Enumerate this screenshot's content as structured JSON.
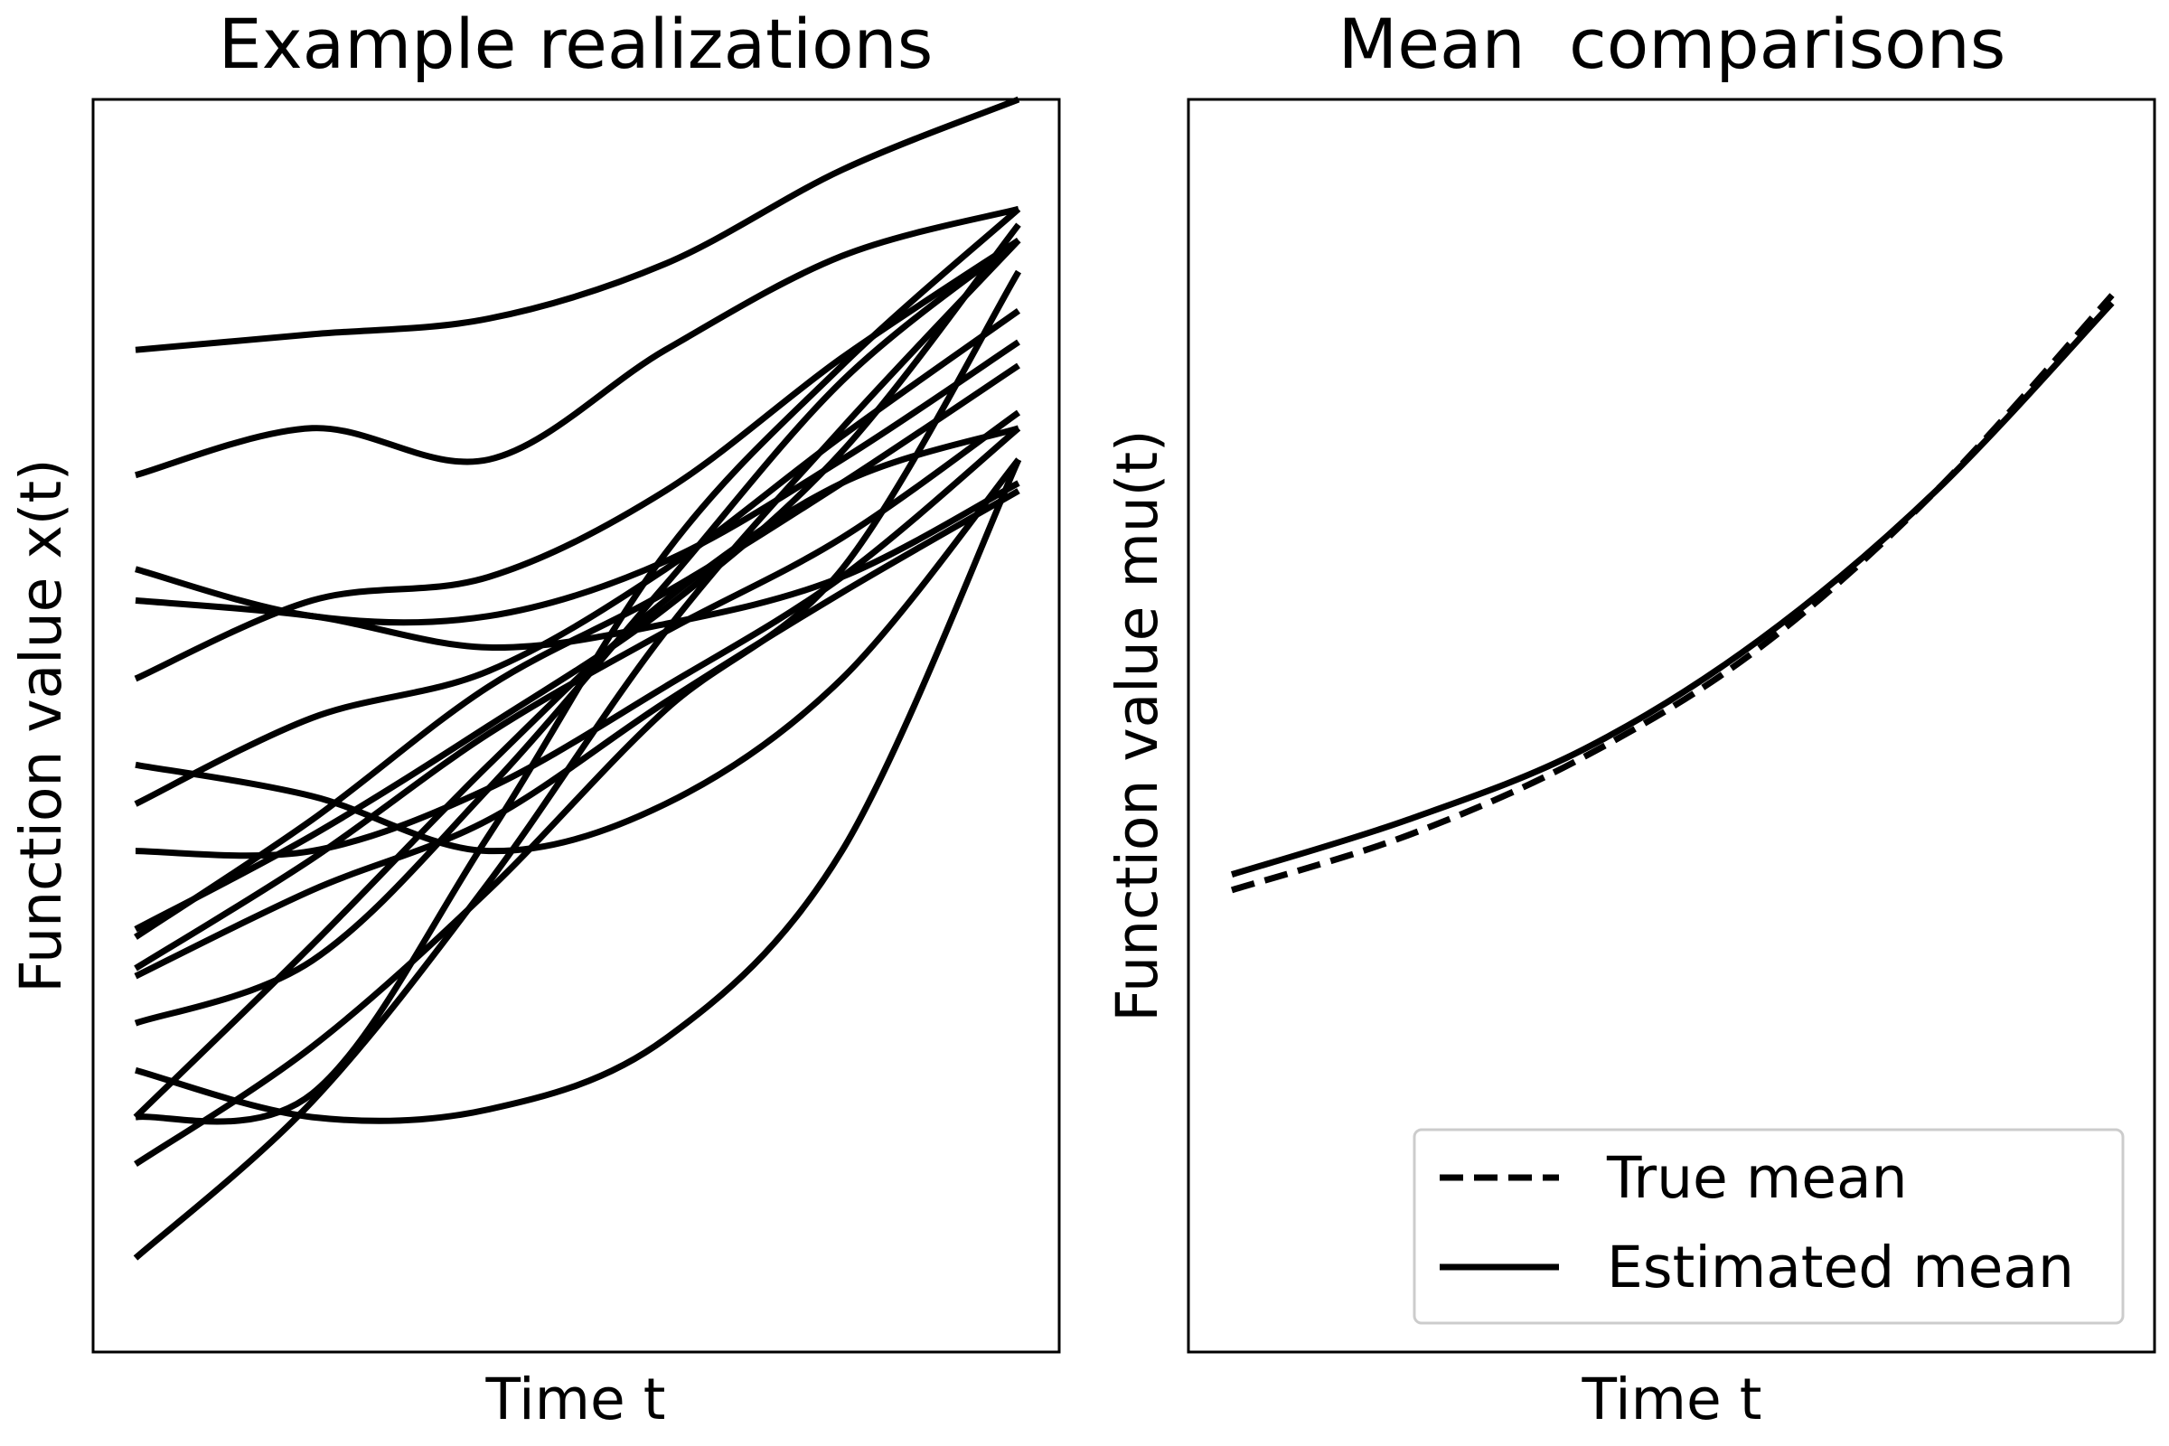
{
  "chart_data": [
    {
      "type": "line",
      "title": "Example realizations",
      "xlabel": "Time t",
      "ylabel": "Function value x(t)",
      "xticks": "none",
      "yticks": "none",
      "xlim": [
        0,
        1
      ],
      "ylim": [
        -4.0,
        4.0
      ],
      "grid": false,
      "line_color": "#000000",
      "series": [
        {
          "x": [
            0,
            0.2,
            0.4,
            0.6,
            0.8,
            1.0
          ],
          "values": [
            -3.4,
            -2.4,
            -1.0,
            0.6,
            1.9,
            3.1
          ]
        },
        {
          "x": [
            0,
            0.2,
            0.4,
            0.6,
            0.8,
            1.0
          ],
          "values": [
            -2.8,
            -2.05,
            -1.05,
            0.1,
            1.0,
            2.9
          ]
        },
        {
          "x": [
            0,
            0.2,
            0.4,
            0.6,
            0.8,
            1.0
          ],
          "values": [
            -2.2,
            -2.5,
            -2.45,
            -2.0,
            -0.8,
            1.7
          ]
        },
        {
          "x": [
            0,
            0.2,
            0.4,
            0.6,
            0.8,
            1.0
          ],
          "values": [
            -1.6,
            -1.05,
            -0.6,
            0.15,
            0.85,
            1.5
          ]
        },
        {
          "x": [
            0,
            0.2,
            0.4,
            0.6,
            0.8,
            1.0
          ],
          "values": [
            -1.3,
            -0.7,
            0.0,
            0.75,
            1.75,
            3.2
          ]
        },
        {
          "x": [
            0,
            0.2,
            0.4,
            0.6,
            0.8,
            1.0
          ],
          "values": [
            -1.35,
            -0.6,
            0.25,
            0.85,
            1.55,
            2.3
          ]
        },
        {
          "x": [
            0,
            0.2,
            0.4,
            0.6,
            0.8,
            1.0
          ],
          "values": [
            -1.55,
            -0.85,
            -0.05,
            0.6,
            1.2,
            2.0
          ]
        },
        {
          "x": [
            0,
            0.2,
            0.4,
            0.6,
            0.8,
            1.0
          ],
          "values": [
            -2.5,
            -1.4,
            -0.25,
            0.8,
            1.55,
            1.9
          ]
        },
        {
          "x": [
            0,
            0.2,
            0.4,
            0.6,
            0.8,
            1.0
          ],
          "values": [
            -2.5,
            -2.35,
            -0.7,
            1.1,
            2.3,
            3.3
          ]
        },
        {
          "x": [
            0,
            0.2,
            0.4,
            0.6,
            0.8,
            1.0
          ],
          "values": [
            -1.9,
            -1.5,
            -0.4,
            0.9,
            2.2,
            3.1
          ]
        },
        {
          "x": [
            0,
            0.2,
            0.4,
            0.6,
            0.8,
            1.0
          ],
          "values": [
            -0.8,
            -0.8,
            -0.4,
            0.25,
            0.95,
            1.9
          ]
        },
        {
          "x": [
            0,
            0.2,
            0.4,
            0.6,
            0.8,
            1.0
          ],
          "values": [
            -0.25,
            -0.45,
            -0.8,
            -0.5,
            0.3,
            1.7
          ]
        },
        {
          "x": [
            0,
            0.2,
            0.4,
            0.6,
            0.8,
            1.0
          ],
          "values": [
            0.8,
            0.7,
            0.5,
            0.65,
            0.95,
            1.55
          ]
        },
        {
          "x": [
            0,
            0.2,
            0.4,
            0.6,
            0.8,
            1.0
          ],
          "values": [
            0.3,
            0.8,
            0.95,
            1.5,
            2.35,
            3.1
          ]
        },
        {
          "x": [
            0,
            0.2,
            0.4,
            0.6,
            0.8,
            1.0
          ],
          "values": [
            1.0,
            0.7,
            0.7,
            1.05,
            1.7,
            2.45
          ]
        },
        {
          "x": [
            0,
            0.2,
            0.4,
            0.6,
            0.8,
            1.0
          ],
          "values": [
            -0.5,
            0.05,
            0.35,
            1.0,
            1.85,
            2.65
          ]
        },
        {
          "x": [
            0,
            0.2,
            0.4,
            0.6,
            0.8,
            1.0
          ],
          "values": [
            1.6,
            1.9,
            1.7,
            2.4,
            3.0,
            3.3
          ]
        },
        {
          "x": [
            0,
            0.2,
            0.4,
            0.6,
            0.8,
            1.0
          ],
          "values": [
            2.4,
            2.5,
            2.6,
            2.95,
            3.55,
            4.0
          ]
        }
      ]
    },
    {
      "type": "line",
      "title": "Mean  comparisons",
      "xlabel": "Time t",
      "ylabel": "Function value mu(t)",
      "xticks": "none",
      "yticks": "none",
      "xlim": [
        0,
        1
      ],
      "ylim": [
        -4.0,
        4.0
      ],
      "grid": false,
      "legend": "lower-right",
      "line_color": "#000000",
      "series": [
        {
          "name": "True mean",
          "style": "dashed",
          "x": [
            0,
            0.2,
            0.4,
            0.6,
            0.8,
            1.0
          ],
          "values": [
            -1.05,
            -0.7,
            -0.2,
            0.5,
            1.5,
            2.75
          ]
        },
        {
          "name": "Estimated mean",
          "style": "solid",
          "x": [
            0,
            0.2,
            0.4,
            0.6,
            0.8,
            1.0
          ],
          "values": [
            -0.95,
            -0.6,
            -0.15,
            0.55,
            1.5,
            2.7
          ]
        }
      ]
    }
  ]
}
